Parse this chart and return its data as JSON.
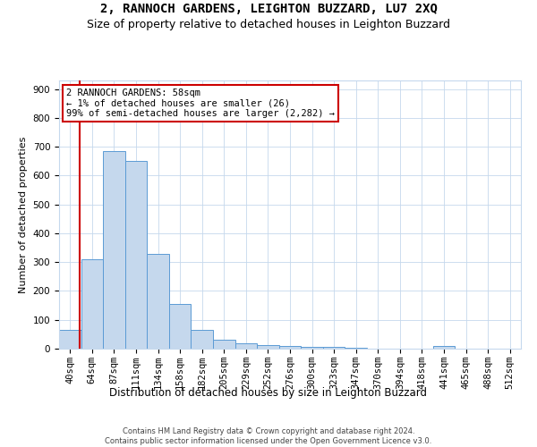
{
  "title": "2, RANNOCH GARDENS, LEIGHTON BUZZARD, LU7 2XQ",
  "subtitle": "Size of property relative to detached houses in Leighton Buzzard",
  "xlabel": "Distribution of detached houses by size in Leighton Buzzard",
  "ylabel": "Number of detached properties",
  "footer_line1": "Contains HM Land Registry data © Crown copyright and database right 2024.",
  "footer_line2": "Contains public sector information licensed under the Open Government Licence v3.0.",
  "bar_labels": [
    "40sqm",
    "64sqm",
    "87sqm",
    "111sqm",
    "134sqm",
    "158sqm",
    "182sqm",
    "205sqm",
    "229sqm",
    "252sqm",
    "276sqm",
    "300sqm",
    "323sqm",
    "347sqm",
    "370sqm",
    "394sqm",
    "418sqm",
    "441sqm",
    "465sqm",
    "488sqm",
    "512sqm"
  ],
  "bar_values": [
    65,
    310,
    685,
    650,
    330,
    155,
    65,
    30,
    18,
    12,
    8,
    6,
    5,
    4,
    0,
    0,
    0,
    10,
    0,
    0,
    0
  ],
  "bar_color": "#c5d8ed",
  "bar_edge_color": "#5b9bd5",
  "grid_color": "#c5d8ed",
  "ylim": [
    0,
    930
  ],
  "yticks": [
    0,
    100,
    200,
    300,
    400,
    500,
    600,
    700,
    800,
    900
  ],
  "annotation_text": "2 RANNOCH GARDENS: 58sqm\n← 1% of detached houses are smaller (26)\n99% of semi-detached houses are larger (2,282) →",
  "vline_x_index": 0.45,
  "vline_color": "#cc0000",
  "box_edge_color": "#cc0000",
  "box_face_color": "#ffffff",
  "title_fontsize": 10,
  "subtitle_fontsize": 9,
  "tick_fontsize": 7.5,
  "ylabel_fontsize": 8,
  "xlabel_fontsize": 8.5,
  "annotation_fontsize": 7.5,
  "footer_fontsize": 6
}
